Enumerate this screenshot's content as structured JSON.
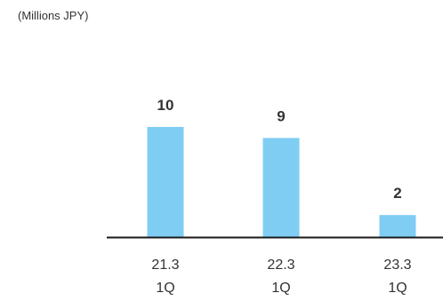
{
  "chart_data": {
    "type": "bar",
    "unit_label": "(Millions JPY)",
    "categories": [
      [
        "21.3",
        "1Q"
      ],
      [
        "22.3",
        "1Q"
      ],
      [
        "23.3",
        "1Q"
      ]
    ],
    "values": [
      10,
      9,
      2
    ],
    "data_labels": [
      "10",
      "9",
      "2"
    ],
    "ylim": [
      0,
      11
    ],
    "grid": false,
    "legend": "none",
    "colors": {
      "bar": "#7fcdf3",
      "axis": "#1a1a1a",
      "text": "#333333"
    }
  }
}
